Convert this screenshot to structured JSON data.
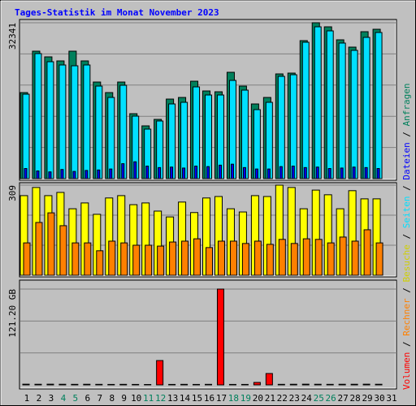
{
  "title": "Tages-Statistik im Monat November 2023",
  "chart_data": [
    {
      "type": "bar",
      "ylim": [
        0,
        32341
      ],
      "yticks": [
        32341
      ],
      "grid": true,
      "series": [
        {
          "name": "Anfragen",
          "color": "#00805c",
          "values": [
            17852,
            26442,
            25264,
            24423,
            26442,
            24423,
            20042,
            17852,
            20042,
            13474,
            10948,
            12295,
            16505,
            16842,
            20210,
            18190,
            18021,
            22063,
            19200,
            15495,
            16842,
            21726,
            21895,
            28632,
            32341,
            31495,
            28800,
            27284,
            30484,
            30989,
            null
          ]
        },
        {
          "name": "Seiten",
          "color": "#00e0ff",
          "values": [
            17516,
            25937,
            24253,
            23579,
            23411,
            23579,
            19200,
            16842,
            19368,
            12968,
            10274,
            11958,
            15495,
            15832,
            19032,
            17348,
            17348,
            20379,
            18358,
            14316,
            15832,
            21221,
            21558,
            28295,
            31495,
            30653,
            28126,
            26611,
            29305,
            30316,
            null
          ]
        },
        {
          "name": "Dateien",
          "color": "#0000ff",
          "values": [
            2100,
            1600,
            1400,
            1900,
            1500,
            1700,
            1800,
            2000,
            3100,
            3500,
            2600,
            2300,
            2400,
            2200,
            2600,
            2500,
            2800,
            3000,
            2300,
            2000,
            2000,
            2500,
            2600,
            2300,
            2400,
            2100,
            2200,
            2400,
            2300,
            2100,
            null
          ]
        }
      ]
    },
    {
      "type": "bar",
      "ylim": [
        0,
        309
      ],
      "yticks": [
        309
      ],
      "grid": true,
      "series": [
        {
          "name": "Besuche",
          "color": "#ffff00",
          "values": [
            273,
            301,
            273,
            284,
            228,
            248,
            209,
            265,
            273,
            242,
            248,
            220,
            200,
            251,
            215,
            265,
            270,
            228,
            217,
            273,
            270,
            309,
            301,
            228,
            292,
            276,
            228,
            290,
            262,
            262,
            null
          ]
        },
        {
          "name": "Rechner",
          "color": "#ff8000",
          "values": [
            111,
            181,
            214,
            170,
            111,
            111,
            84,
            117,
            111,
            103,
            103,
            100,
            114,
            117,
            125,
            95,
            117,
            117,
            109,
            117,
            106,
            123,
            109,
            125,
            123,
            111,
            131,
            117,
            156,
            111,
            null
          ]
        }
      ]
    },
    {
      "type": "bar",
      "ylim": [
        0,
        121.2
      ],
      "yticks": [
        {
          "value": 121.2,
          "label": "121.20 GB"
        }
      ],
      "grid": true,
      "categories": [
        "1",
        "2",
        "3",
        "4",
        "5",
        "6",
        "7",
        "8",
        "9",
        "10",
        "11",
        "12",
        "13",
        "14",
        "15",
        "16",
        "17",
        "18",
        "19",
        "20",
        "21",
        "22",
        "23",
        "24",
        "25",
        "26",
        "27",
        "28",
        "29",
        "30",
        "31"
      ],
      "category_colors": [
        "#000000",
        "#000000",
        "#000000",
        "#00805c",
        "#00805c",
        "#000000",
        "#000000",
        "#000000",
        "#000000",
        "#000000",
        "#00805c",
        "#00805c",
        "#000000",
        "#000000",
        "#000000",
        "#000000",
        "#000000",
        "#00805c",
        "#00805c",
        "#000000",
        "#000000",
        "#000000",
        "#000000",
        "#000000",
        "#00805c",
        "#00805c",
        "#000000",
        "#000000",
        "#000000",
        "#000000",
        "#000000"
      ],
      "series": [
        {
          "name": "Volumen",
          "color": "#ff0000",
          "values": [
            0.9,
            0.8,
            0.9,
            0.8,
            0.7,
            0.8,
            0.7,
            0.6,
            0.7,
            0.6,
            0.5,
            30.8,
            0.6,
            0.7,
            0.6,
            0.7,
            121.2,
            0.6,
            0.6,
            3.1,
            14.4,
            0.7,
            0.8,
            0.9,
            0.8,
            0.7,
            0.8,
            0.8,
            0.9,
            0.8,
            null
          ]
        }
      ]
    }
  ]
}
